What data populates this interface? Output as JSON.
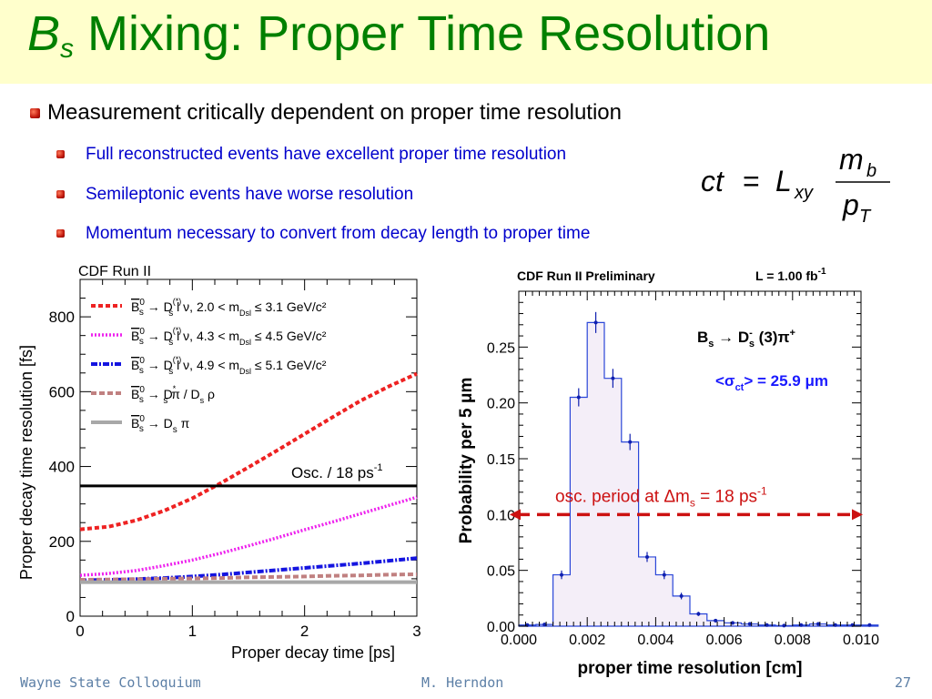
{
  "slide": {
    "title_main": "B",
    "title_sub": "s",
    "title_rest": " Mixing: Proper Time Resolution",
    "bullets": [
      {
        "level": 1,
        "text": "Measurement critically dependent on proper time resolution"
      },
      {
        "level": 2,
        "text": "Full reconstructed events have excellent proper time resolution"
      },
      {
        "level": 2,
        "text": "Semileptonic events have worse resolution"
      },
      {
        "level": 2,
        "text": "Momentum necessary to convert from decay length to proper time"
      }
    ],
    "formula": "ct = L_xy m_b / p_T",
    "footer": {
      "left": "Wayne State Colloquium",
      "center": "M. Herndon",
      "right": "27"
    },
    "colors": {
      "title": "#008000",
      "sub_bullets": "#0000cc",
      "bullet_marker": "#c0180c",
      "footer": "#5c7fa6"
    }
  },
  "chart_data": [
    {
      "type": "line",
      "title": "CDF Run II",
      "xlabel": "Proper decay time [ps]",
      "ylabel": "Proper decay time resolution [fs]",
      "xlim": [
        0,
        3
      ],
      "ylim": [
        0,
        900
      ],
      "xticks": [
        "0",
        "1",
        "2",
        "3"
      ],
      "yticks": [
        "0",
        "200",
        "400",
        "600",
        "800"
      ],
      "legend_position": "top-left",
      "x": [
        0,
        0.25,
        0.5,
        0.75,
        1.0,
        1.25,
        1.5,
        1.75,
        2.0,
        2.25,
        2.5,
        2.75,
        3.0
      ],
      "series": [
        {
          "name_head": "B",
          "name_sup": "0",
          "name_sub": "s",
          "name_tail": "→ D",
          "tail_sup": "(*)",
          "tail_sub": "s",
          "name_rest": " l ν, 2.0 < m",
          "rest_sub": "Dsl",
          "name_end": " ≤ 3.1 GeV/c²",
          "color": "#ee2222",
          "dash": "5,3",
          "width": 4,
          "values": [
            232,
            239,
            256,
            282,
            315,
            355,
            398,
            442,
            487,
            532,
            576,
            614,
            648
          ]
        },
        {
          "name_head": "B",
          "name_sup": "0",
          "name_sub": "s",
          "name_tail": "→ D",
          "tail_sup": "(*)",
          "tail_sub": "s",
          "name_rest": " l ν, 4.3 < m",
          "rest_sub": "Dsl",
          "name_end": " ≤ 4.5 GeV/c²",
          "color": "#ee22ee",
          "dash": "2,2",
          "width": 3.5,
          "values": [
            109,
            114,
            122,
            135,
            150,
            168,
            188,
            209,
            231,
            252,
            274,
            296,
            318
          ]
        },
        {
          "name_head": "B",
          "name_sup": "0",
          "name_sub": "s",
          "name_tail": "→ D",
          "tail_sup": "(*)",
          "tail_sub": "s",
          "name_rest": " l ν, 4.9 < m",
          "rest_sub": "Dsl",
          "name_end": " ≤ 5.1 GeV/c²",
          "color": "#1414e0",
          "dash": "7,2,2,2",
          "width": 4,
          "values": [
            96,
            97,
            99,
            102,
            106,
            111,
            117,
            123,
            129,
            135,
            141,
            148,
            155
          ]
        },
        {
          "name_head": "B",
          "name_sup": "0",
          "name_sub": "s",
          "name_tail": "→ D",
          "tail_sup": "*",
          "tail_sub": "s",
          "name_rest": " π / D",
          "rest_sub": "s",
          "name_end": " ρ",
          "color": "#c08080",
          "dash": "6,3",
          "width": 4,
          "values": [
            97,
            98,
            99,
            100,
            101,
            102,
            104,
            105,
            106,
            108,
            109,
            111,
            112
          ]
        },
        {
          "name_head": "B",
          "name_sup": "0",
          "name_sub": "s",
          "name_tail": "→ D",
          "tail_sup": "",
          "tail_sub": "s",
          "name_rest": " π",
          "rest_sub": "",
          "name_end": "",
          "color": "#a8a8a8",
          "dash": "",
          "width": 4,
          "values": [
            91,
            91,
            91,
            91,
            91,
            91,
            91,
            91,
            91,
            91,
            91,
            91,
            91
          ]
        }
      ],
      "annotation": {
        "text": "Osc. / 18 ps",
        "sup": "-1",
        "value": 348
      }
    },
    {
      "type": "bar",
      "title": "CDF Run II Preliminary",
      "luminosity": "L = 1.00 fb",
      "luminosity_sup": "-1",
      "xlabel": "proper time resolution [cm]",
      "ylabel": "Probability per 5 μm",
      "xlim": [
        0,
        0.01
      ],
      "ylim": [
        0,
        0.3
      ],
      "xticks": [
        "0.000",
        "0.002",
        "0.004",
        "0.006",
        "0.008",
        "0.010"
      ],
      "yticks": [
        "0.00",
        "0.05",
        "0.10",
        "0.15",
        "0.20",
        "0.25"
      ],
      "bin_width": 0.0005,
      "values": [
        0.001,
        0.0015,
        0.046,
        0.205,
        0.272,
        0.222,
        0.165,
        0.062,
        0.046,
        0.027,
        0.011,
        0.005,
        0.003,
        0.002,
        0.001,
        0.0005,
        0.001,
        0.002,
        0.001,
        0.001,
        0.001
      ],
      "decay_label": {
        "b": "B",
        "b_sub": "s",
        "arrow": " → D",
        "d_sup": "-",
        "d_sub": "s",
        "rest": " (3)π",
        "rest_sup": "+"
      },
      "mean_label": {
        "pre": "<σ",
        "sub": "ct",
        "post": "> = 25.9 μm"
      },
      "annotation": {
        "pre": "osc. period at Δm",
        "sub": "s",
        "post": " = 18 ps",
        "sup": "-1",
        "value": 0.1,
        "color": "#cc1111"
      }
    }
  ]
}
